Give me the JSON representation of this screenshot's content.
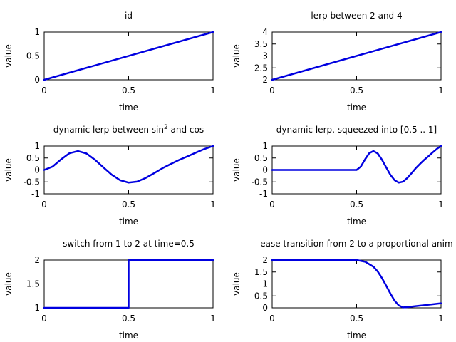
{
  "chart_data": [
    {
      "type": "line",
      "title": "id",
      "xlabel": "time",
      "ylabel": "value",
      "xlim": [
        0,
        1
      ],
      "ylim": [
        0,
        1
      ],
      "xticks": [
        "0",
        "0.5",
        "1"
      ],
      "yticks": [
        "0",
        "0.5",
        "1"
      ],
      "grid": false,
      "series": [
        {
          "color": "#0000e0",
          "x": [
            0,
            1
          ],
          "y": [
            0,
            1
          ]
        }
      ]
    },
    {
      "type": "line",
      "title": "lerp between 2 and 4",
      "xlabel": "time",
      "ylabel": "value",
      "xlim": [
        0,
        1
      ],
      "ylim": [
        2,
        4
      ],
      "xticks": [
        "0",
        "0.5",
        "1"
      ],
      "yticks": [
        "2",
        "2.5",
        "3",
        "3.5",
        "4"
      ],
      "grid": false,
      "series": [
        {
          "color": "#0000e0",
          "x": [
            0,
            1
          ],
          "y": [
            2,
            4
          ]
        }
      ]
    },
    {
      "type": "line",
      "title": "dynamic lerp between sin",
      "title_sup": "2",
      "title_tail": " and cos",
      "xlabel": "time",
      "ylabel": "value",
      "xlim": [
        0,
        1
      ],
      "ylim": [
        -1,
        1
      ],
      "xticks": [
        "0",
        "0.5",
        "1"
      ],
      "yticks": [
        "-1",
        "-0.5",
        "0",
        "0.5",
        "1"
      ],
      "grid": false,
      "series": [
        {
          "color": "#0000e0",
          "x": [
            0,
            0.05,
            0.1,
            0.15,
            0.2,
            0.25,
            0.3,
            0.35,
            0.4,
            0.45,
            0.5,
            0.55,
            0.6,
            0.65,
            0.7,
            0.75,
            0.8,
            0.85,
            0.9,
            0.95,
            1
          ],
          "y": [
            0,
            0.14,
            0.44,
            0.7,
            0.79,
            0.69,
            0.43,
            0.11,
            -0.2,
            -0.43,
            -0.53,
            -0.49,
            -0.34,
            -0.14,
            0.07,
            0.25,
            0.42,
            0.57,
            0.73,
            0.88,
            1
          ]
        }
      ]
    },
    {
      "type": "line",
      "title": "dynamic lerp, squeezed into [0.5 .. 1]",
      "xlabel": "time",
      "ylabel": "value",
      "xlim": [
        0,
        1
      ],
      "ylim": [
        -1,
        1
      ],
      "xticks": [
        "0",
        "0.5",
        "1"
      ],
      "yticks": [
        "-1",
        "-0.5",
        "0",
        "0.5",
        "1"
      ],
      "grid": false,
      "series": [
        {
          "color": "#0000e0",
          "x": [
            0,
            0.5,
            0.525,
            0.55,
            0.575,
            0.6,
            0.625,
            0.65,
            0.675,
            0.7,
            0.725,
            0.75,
            0.775,
            0.8,
            0.825,
            0.85,
            0.875,
            0.9,
            0.925,
            0.95,
            0.975,
            1
          ],
          "y": [
            0,
            0,
            0.14,
            0.44,
            0.7,
            0.79,
            0.69,
            0.43,
            0.11,
            -0.2,
            -0.43,
            -0.53,
            -0.49,
            -0.34,
            -0.14,
            0.07,
            0.25,
            0.42,
            0.57,
            0.73,
            0.88,
            1
          ]
        }
      ]
    },
    {
      "type": "line",
      "title": "switch from 1 to 2 at time=0.5",
      "xlabel": "time",
      "ylabel": "value",
      "xlim": [
        0,
        1
      ],
      "ylim": [
        1,
        2
      ],
      "xticks": [
        "0",
        "0.5",
        "1"
      ],
      "yticks": [
        "1",
        "1.5",
        "2"
      ],
      "grid": false,
      "series": [
        {
          "color": "#0000e0",
          "x": [
            0,
            0.5,
            0.5,
            1
          ],
          "y": [
            1,
            1,
            2,
            2
          ]
        }
      ]
    },
    {
      "type": "line",
      "title": "ease transition from 2 to a proportional anim",
      "xlabel": "time",
      "ylabel": "value",
      "xlim": [
        0,
        1
      ],
      "ylim": [
        0,
        2
      ],
      "xticks": [
        "0",
        "0.5",
        "1"
      ],
      "yticks": [
        "0",
        "0.5",
        "1",
        "1.5",
        "2"
      ],
      "grid": false,
      "series": [
        {
          "color": "#0000e0",
          "x": [
            0,
            0.5,
            0.55,
            0.6,
            0.625,
            0.65,
            0.675,
            0.7,
            0.725,
            0.75,
            0.775,
            0.8,
            0.85,
            0.9,
            0.95,
            1
          ],
          "y": [
            2,
            2,
            1.93,
            1.72,
            1.52,
            1.25,
            0.93,
            0.6,
            0.3,
            0.1,
            0.02,
            0.03,
            0.07,
            0.11,
            0.15,
            0.19
          ]
        }
      ]
    }
  ]
}
